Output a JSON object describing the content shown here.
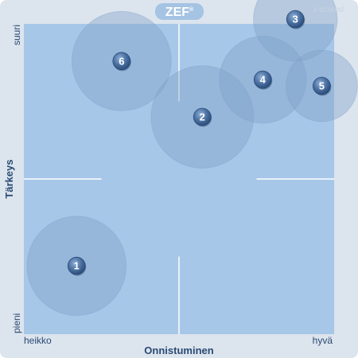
{
  "logo": {
    "text": "ZEF",
    "mark": "®"
  },
  "watermark": "z-scored",
  "chart_data": {
    "type": "scatter",
    "xlabel": "Onnistuminen",
    "ylabel": "Tärkeys",
    "x_tick_labels": {
      "low": "heikko",
      "high": "hyvä"
    },
    "y_tick_labels": {
      "low": "pieni",
      "high": "suuri"
    },
    "xlim": [
      0,
      1
    ],
    "ylim": [
      0,
      1
    ],
    "grid": false,
    "quadrant_dividers": true,
    "points": [
      {
        "label": "1",
        "x": 0.17,
        "y": 0.22,
        "spread": 0.16
      },
      {
        "label": "2",
        "x": 0.575,
        "y": 0.7,
        "spread": 0.165
      },
      {
        "label": "3",
        "x": 0.875,
        "y": 1.015,
        "spread": 0.135
      },
      {
        "label": "4",
        "x": 0.77,
        "y": 0.82,
        "spread": 0.14
      },
      {
        "label": "5",
        "x": 0.96,
        "y": 0.8,
        "spread": 0.115
      },
      {
        "label": "6",
        "x": 0.315,
        "y": 0.88,
        "spread": 0.16
      }
    ],
    "colors": {
      "frame_background": "#dce4ee",
      "plot_background": "#a7c7e8",
      "divider": "#ffffff",
      "spread_fill": "#7e9fc6",
      "marker_fill": "#3b5f8f",
      "axis_text": "#2a4a72",
      "logo_background": "#a5c3e3"
    }
  }
}
